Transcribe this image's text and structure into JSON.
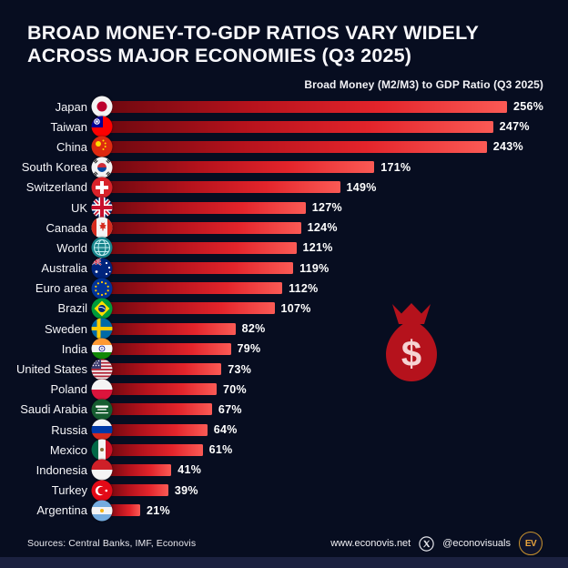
{
  "title": {
    "line1": "BROAD MONEY-TO-GDP RATIOS VARY WIDELY",
    "line2": "ACROSS MAJOR ECONOMIES (Q3 2025)"
  },
  "subtitle": "Broad Money (M2/M3) to GDP Ratio (Q3 2025)",
  "chart_data": {
    "type": "bar",
    "orientation": "horizontal",
    "title": "Broad Money (M2/M3) to GDP Ratio (Q3 2025)",
    "unit": "%",
    "xlim": [
      0,
      256
    ],
    "grid": false,
    "legend": "none",
    "categories": [
      "Japan",
      "Taiwan",
      "China",
      "South Korea",
      "Switzerland",
      "UK",
      "Canada",
      "World",
      "Australia",
      "Euro area",
      "Brazil",
      "Sweden",
      "India",
      "United States",
      "Poland",
      "Saudi Arabia",
      "Russia",
      "Mexico",
      "Indonesia",
      "Turkey",
      "Argentina"
    ],
    "values": [
      256,
      247,
      243,
      171,
      149,
      127,
      124,
      121,
      119,
      112,
      107,
      82,
      79,
      73,
      70,
      67,
      64,
      61,
      41,
      39,
      21
    ],
    "value_labels": [
      "256%",
      "247%",
      "243%",
      "171%",
      "149%",
      "127%",
      "124%",
      "121%",
      "119%",
      "112%",
      "107%",
      "82%",
      "79%",
      "73%",
      "70%",
      "67%",
      "64%",
      "61%",
      "41%",
      "39%",
      "21%"
    ],
    "bar_gradient": [
      "#6f080f",
      "#fb5a55"
    ]
  },
  "rows": [
    {
      "label": "Japan",
      "flag": "japan",
      "value": 256,
      "value_label": "256%"
    },
    {
      "label": "Taiwan",
      "flag": "taiwan",
      "value": 247,
      "value_label": "247%"
    },
    {
      "label": "China",
      "flag": "china",
      "value": 243,
      "value_label": "243%"
    },
    {
      "label": "South Korea",
      "flag": "south-korea",
      "value": 171,
      "value_label": "171%"
    },
    {
      "label": "Switzerland",
      "flag": "switzerland",
      "value": 149,
      "value_label": "149%"
    },
    {
      "label": "UK",
      "flag": "uk",
      "value": 127,
      "value_label": "127%"
    },
    {
      "label": "Canada",
      "flag": "canada",
      "value": 124,
      "value_label": "124%"
    },
    {
      "label": "World",
      "flag": "world",
      "value": 121,
      "value_label": "121%"
    },
    {
      "label": "Australia",
      "flag": "australia",
      "value": 119,
      "value_label": "119%"
    },
    {
      "label": "Euro area",
      "flag": "euro-area",
      "value": 112,
      "value_label": "112%"
    },
    {
      "label": "Brazil",
      "flag": "brazil",
      "value": 107,
      "value_label": "107%"
    },
    {
      "label": "Sweden",
      "flag": "sweden",
      "value": 82,
      "value_label": "82%"
    },
    {
      "label": "India",
      "flag": "india",
      "value": 79,
      "value_label": "79%"
    },
    {
      "label": "United States",
      "flag": "united-states",
      "value": 73,
      "value_label": "73%"
    },
    {
      "label": "Poland",
      "flag": "poland",
      "value": 70,
      "value_label": "70%"
    },
    {
      "label": "Saudi Arabia",
      "flag": "saudi-arabia",
      "value": 67,
      "value_label": "67%"
    },
    {
      "label": "Russia",
      "flag": "russia",
      "value": 64,
      "value_label": "64%"
    },
    {
      "label": "Mexico",
      "flag": "mexico",
      "value": 61,
      "value_label": "61%"
    },
    {
      "label": "Indonesia",
      "flag": "indonesia",
      "value": 41,
      "value_label": "41%"
    },
    {
      "label": "Turkey",
      "flag": "turkey",
      "value": 39,
      "value_label": "39%"
    },
    {
      "label": "Argentina",
      "flag": "argentina",
      "value": 21,
      "value_label": "21%"
    }
  ],
  "decoration": {
    "icon": "money-bag-icon",
    "dollar_glyph": "$",
    "bag_color": "#b5121c",
    "dollar_color": "#f5d3d3"
  },
  "footer": {
    "sources": "Sources: Central Banks, IMF, Econovis",
    "website": "www.econovis.net",
    "social_icon": "x-twitter",
    "social_handle": "@econovisuals",
    "logo_text": "EV"
  },
  "colors": {
    "background": "#070d20",
    "bar_dark": "#6f080f",
    "bar_bright": "#fb5a55",
    "text": "#ffffff",
    "accent_gold": "#e8a33d"
  }
}
